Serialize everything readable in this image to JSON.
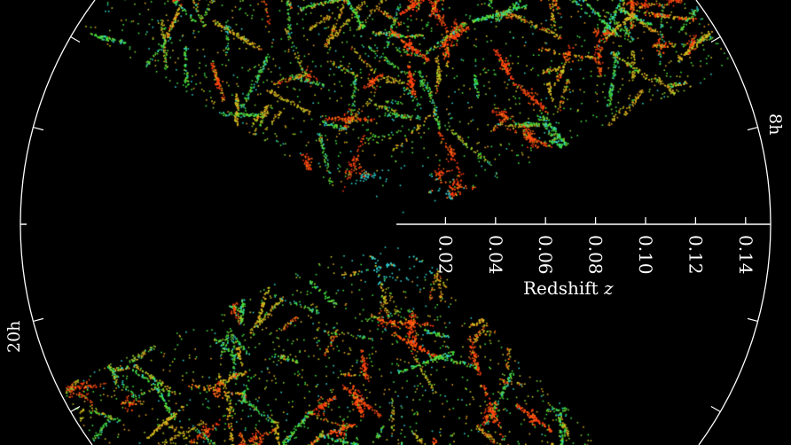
{
  "chart_data": {
    "type": "scatter",
    "projection": "polar wedge (right ascension vs redshift)",
    "xlabel": "Redshift",
    "xlabel_var": "z",
    "radial_ticks": [
      "0.02",
      "0.04",
      "0.06",
      "0.08",
      "0.10",
      "0.12",
      "0.14"
    ],
    "radial_tick_values": [
      0.02,
      0.04,
      0.06,
      0.08,
      0.1,
      0.12,
      0.14
    ],
    "radial_range": [
      0,
      0.15
    ],
    "angle_labels": [
      {
        "label": "8h",
        "side": "right"
      },
      {
        "label": "20h",
        "side": "left"
      }
    ],
    "grid": false,
    "colors": {
      "background": "#000000",
      "axis": "#ffffff",
      "dense": "#ff3a10",
      "mid": "#e0a020",
      "sparse": "#40e040",
      "near": "#30d0d0"
    }
  }
}
